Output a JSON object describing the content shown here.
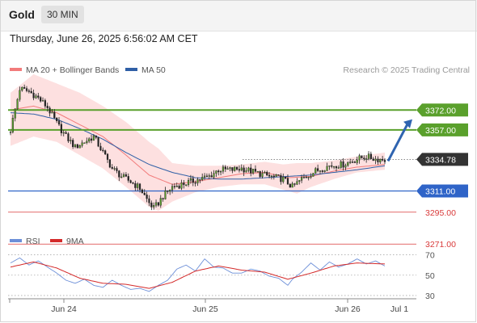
{
  "header": {
    "symbol": "Gold",
    "timeframe": "30 MIN",
    "timestamp": "Thursday, June 26, 2025 6:56:02 AM CET"
  },
  "legend": {
    "ma20_label": "MA 20 + Bollinger Bands",
    "ma50_label": "MA 50",
    "credit": "Research © 2025 Trading Central",
    "rsi_label": "RSI",
    "rsi_ma_label": "9MA"
  },
  "colors": {
    "ma20": "#f27b7b",
    "ma50": "#2f5fa6",
    "bands": "#fde0e0",
    "resistance": "#5aa02c",
    "current": "#333333",
    "support1": "#2f64c8",
    "support_red": "#d93a3a",
    "arrow": "#2f64b0",
    "rsi": "#6c8fd8",
    "rsi_ma": "#d42a2a"
  },
  "chart_data": {
    "type": "candlestick",
    "price_axis": {
      "ylim": [
        3255,
        3395
      ]
    },
    "x_ticks": [
      "Jun 24",
      "Jun 25",
      "Jun 26",
      "Jul 1"
    ],
    "levels": [
      {
        "label": "3372.00",
        "value": 3372.0,
        "kind": "resistance"
      },
      {
        "label": "3357.00",
        "value": 3357.0,
        "kind": "resistance"
      },
      {
        "label": "3334.78",
        "value": 3334.78,
        "kind": "current"
      },
      {
        "label": "3311.00",
        "value": 3311.0,
        "kind": "support"
      },
      {
        "label": "3295.00",
        "value": 3295.0,
        "kind": "support-minor"
      },
      {
        "label": "3271.00",
        "value": 3271.0,
        "kind": "support-minor"
      }
    ],
    "close_anchors": [
      [
        0,
        3357
      ],
      [
        4,
        3388
      ],
      [
        8,
        3386
      ],
      [
        12,
        3381
      ],
      [
        16,
        3374
      ],
      [
        20,
        3362
      ],
      [
        24,
        3352
      ],
      [
        28,
        3344
      ],
      [
        32,
        3348
      ],
      [
        36,
        3352
      ],
      [
        40,
        3340
      ],
      [
        44,
        3328
      ],
      [
        48,
        3322
      ],
      [
        52,
        3318
      ],
      [
        56,
        3313
      ],
      [
        60,
        3302
      ],
      [
        62,
        3298
      ],
      [
        64,
        3302
      ],
      [
        66,
        3307
      ],
      [
        70,
        3314
      ],
      [
        76,
        3317
      ],
      [
        82,
        3320
      ],
      [
        86,
        3322
      ],
      [
        90,
        3327
      ],
      [
        96,
        3327
      ],
      [
        100,
        3328
      ],
      [
        106,
        3325
      ],
      [
        112,
        3322
      ],
      [
        118,
        3320
      ],
      [
        122,
        3314
      ],
      [
        126,
        3320
      ],
      [
        132,
        3326
      ],
      [
        138,
        3330
      ],
      [
        144,
        3331
      ],
      [
        150,
        3335
      ],
      [
        154,
        3337
      ],
      [
        158,
        3335
      ],
      [
        162,
        3334.78
      ]
    ],
    "ma20_anchors": [
      [
        0,
        3372
      ],
      [
        10,
        3375
      ],
      [
        20,
        3370
      ],
      [
        30,
        3361
      ],
      [
        40,
        3352
      ],
      [
        50,
        3338
      ],
      [
        60,
        3323
      ],
      [
        70,
        3316
      ],
      [
        80,
        3318
      ],
      [
        90,
        3321
      ],
      [
        100,
        3324
      ],
      [
        110,
        3325
      ],
      [
        120,
        3321
      ],
      [
        130,
        3322
      ],
      [
        140,
        3326
      ],
      [
        150,
        3329
      ],
      [
        162,
        3331
      ]
    ],
    "ma50_anchors": [
      [
        0,
        3370
      ],
      [
        10,
        3369
      ],
      [
        20,
        3365
      ],
      [
        30,
        3358
      ],
      [
        40,
        3350
      ],
      [
        50,
        3340
      ],
      [
        60,
        3331
      ],
      [
        70,
        3325
      ],
      [
        80,
        3321
      ],
      [
        90,
        3320
      ],
      [
        100,
        3320
      ],
      [
        110,
        3321
      ],
      [
        120,
        3322
      ],
      [
        130,
        3323
      ],
      [
        140,
        3325
      ],
      [
        150,
        3327
      ],
      [
        162,
        3330
      ]
    ],
    "band_anchors": [
      [
        0,
        3345,
        3385
      ],
      [
        10,
        3352,
        3399
      ],
      [
        20,
        3348,
        3392
      ],
      [
        30,
        3338,
        3385
      ],
      [
        40,
        3328,
        3375
      ],
      [
        50,
        3314,
        3363
      ],
      [
        60,
        3299,
        3348
      ],
      [
        64,
        3296,
        3343
      ],
      [
        70,
        3303,
        3332
      ],
      [
        80,
        3310,
        3330
      ],
      [
        90,
        3314,
        3330
      ],
      [
        100,
        3316,
        3331
      ],
      [
        110,
        3316,
        3333
      ],
      [
        118,
        3312,
        3331
      ],
      [
        124,
        3309,
        3332
      ],
      [
        130,
        3314,
        3332
      ],
      [
        140,
        3320,
        3334
      ],
      [
        150,
        3325,
        3337
      ],
      [
        162,
        3327,
        3340
      ]
    ],
    "forecast": {
      "from": 3334.78,
      "to": 3362
    },
    "rsi": {
      "ylim": [
        20,
        80
      ],
      "levels": [
        70,
        50,
        30
      ],
      "rsi_anchors": [
        [
          0,
          62
        ],
        [
          4,
          67
        ],
        [
          8,
          60
        ],
        [
          12,
          64
        ],
        [
          16,
          58
        ],
        [
          20,
          52
        ],
        [
          24,
          45
        ],
        [
          28,
          42
        ],
        [
          32,
          46
        ],
        [
          36,
          40
        ],
        [
          40,
          38
        ],
        [
          44,
          45
        ],
        [
          48,
          40
        ],
        [
          52,
          36
        ],
        [
          56,
          37
        ],
        [
          60,
          34
        ],
        [
          64,
          40
        ],
        [
          68,
          45
        ],
        [
          72,
          56
        ],
        [
          76,
          60
        ],
        [
          80,
          54
        ],
        [
          84,
          66
        ],
        [
          88,
          58
        ],
        [
          92,
          57
        ],
        [
          96,
          52
        ],
        [
          100,
          52
        ],
        [
          104,
          56
        ],
        [
          108,
          54
        ],
        [
          112,
          49
        ],
        [
          116,
          47
        ],
        [
          120,
          40
        ],
        [
          122,
          46
        ],
        [
          126,
          53
        ],
        [
          130,
          62
        ],
        [
          134,
          55
        ],
        [
          138,
          63
        ],
        [
          142,
          58
        ],
        [
          146,
          61
        ],
        [
          150,
          66
        ],
        [
          154,
          61
        ],
        [
          158,
          64
        ],
        [
          162,
          59
        ]
      ],
      "ma_anchors": [
        [
          0,
          58
        ],
        [
          10,
          63
        ],
        [
          20,
          57
        ],
        [
          30,
          47
        ],
        [
          40,
          42
        ],
        [
          50,
          41
        ],
        [
          60,
          37
        ],
        [
          70,
          43
        ],
        [
          80,
          54
        ],
        [
          90,
          59
        ],
        [
          100,
          55
        ],
        [
          110,
          53
        ],
        [
          120,
          46
        ],
        [
          130,
          52
        ],
        [
          140,
          59
        ],
        [
          150,
          62
        ],
        [
          162,
          61
        ]
      ]
    }
  }
}
